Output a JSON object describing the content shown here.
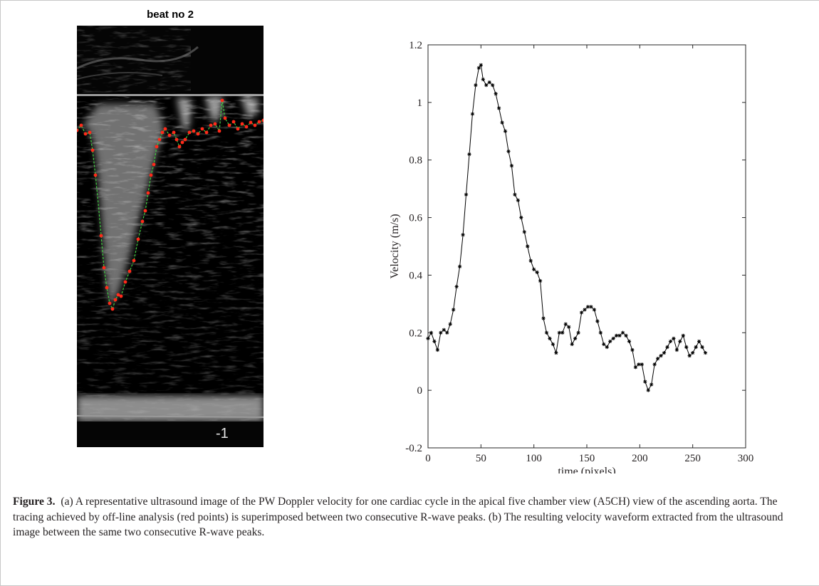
{
  "panel_a": {
    "title": "beat no 2",
    "scale_label": "-1"
  },
  "chart_data": {
    "type": "line",
    "xlabel": "time (pixels)",
    "ylabel": "Velocity (m/s)",
    "xlim": [
      0,
      300
    ],
    "ylim": [
      -0.2,
      1.2
    ],
    "xticks": [
      0,
      50,
      100,
      150,
      200,
      250,
      300
    ],
    "yticks": [
      -0.2,
      0,
      0.2,
      0.4,
      0.6,
      0.8,
      1,
      1.2
    ],
    "grid": false,
    "marker": "asterisk",
    "series": [
      {
        "color": "#000000",
        "x": [
          0,
          3,
          6,
          9,
          12,
          15,
          18,
          21,
          24,
          27,
          30,
          33,
          36,
          39,
          42,
          45,
          48,
          50,
          52,
          55,
          58,
          61,
          64,
          67,
          70,
          73,
          76,
          79,
          82,
          85,
          88,
          91,
          94,
          97,
          100,
          103,
          106,
          109,
          112,
          115,
          118,
          121,
          124,
          127,
          130,
          133,
          136,
          139,
          142,
          145,
          148,
          151,
          154,
          157,
          160,
          163,
          166,
          169,
          172,
          175,
          178,
          181,
          184,
          187,
          190,
          193,
          196,
          199,
          202,
          205,
          208,
          211,
          214,
          217,
          220,
          223,
          226,
          229,
          232,
          235,
          238,
          241,
          244,
          247,
          250,
          253,
          256,
          259,
          262
        ],
        "y": [
          0.18,
          0.2,
          0.17,
          0.14,
          0.2,
          0.21,
          0.2,
          0.23,
          0.28,
          0.36,
          0.43,
          0.54,
          0.68,
          0.82,
          0.96,
          1.06,
          1.12,
          1.13,
          1.08,
          1.06,
          1.07,
          1.06,
          1.03,
          0.98,
          0.93,
          0.9,
          0.83,
          0.78,
          0.68,
          0.66,
          0.6,
          0.55,
          0.5,
          0.45,
          0.42,
          0.41,
          0.38,
          0.25,
          0.2,
          0.18,
          0.16,
          0.13,
          0.2,
          0.2,
          0.23,
          0.22,
          0.16,
          0.18,
          0.2,
          0.27,
          0.28,
          0.29,
          0.29,
          0.28,
          0.24,
          0.2,
          0.16,
          0.15,
          0.17,
          0.18,
          0.19,
          0.19,
          0.2,
          0.19,
          0.17,
          0.14,
          0.08,
          0.09,
          0.09,
          0.03,
          0.0,
          0.02,
          0.09,
          0.11,
          0.12,
          0.13,
          0.15,
          0.17,
          0.18,
          0.14,
          0.17,
          0.19,
          0.15,
          0.12,
          0.13,
          0.15,
          0.17,
          0.15,
          0.13
        ]
      }
    ]
  },
  "caption": {
    "label": "Figure 3.",
    "text": "(a) A representative ultrasound image of the PW Doppler velocity for one cardiac cycle in the apical five chamber view (A5CH) view of the ascending aorta. The tracing achieved by off-line analysis (red points) is superimposed between two consecutive R-wave peaks. (b) The resulting velocity waveform extracted from the ultrasound image between the same two consecutive R-wave peaks."
  }
}
